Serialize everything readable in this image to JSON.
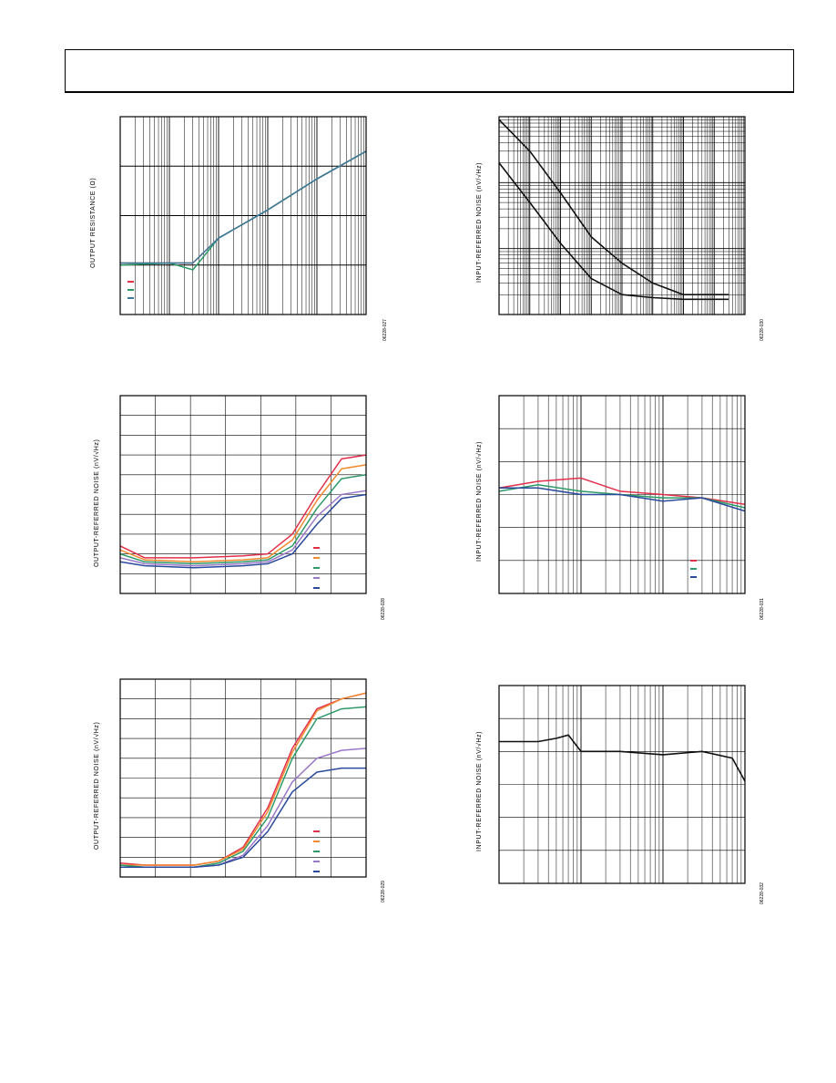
{
  "page": {
    "header": ""
  },
  "colors": {
    "red": "#e0304a",
    "orange": "#f08a30",
    "green": "#2e9a68",
    "purple": "#9a78c8",
    "blue": "#2a4a9a",
    "teal": "#3a7a9a",
    "black": "#111111"
  },
  "charts": [
    {
      "id": "fig27",
      "ylabel": "OUTPUT RESISTANCE (Ω)",
      "figid": "06228-027",
      "chart_data": {
        "type": "line",
        "title": "",
        "xlabel": "",
        "ylabel": "OUTPUT RESISTANCE (Ω)",
        "xscale": "log",
        "xlim": [
          100,
          10000000
        ],
        "xdecades": 5,
        "yscale": "log",
        "ylim": [
          0.01,
          100
        ],
        "ydecades": 4,
        "grid": true,
        "legend": "bottom-left",
        "series": [
          {
            "color": "red",
            "x": [
              100,
              1000,
              3000,
              10000,
              100000,
              1000000,
              10000000
            ],
            "y": [
              0.11,
              0.11,
              0.11,
              0.35,
              1.3,
              5.5,
              20
            ]
          },
          {
            "color": "green",
            "x": [
              100,
              1000,
              3000,
              10000,
              100000,
              1000000,
              10000000
            ],
            "y": [
              0.1,
              0.11,
              0.08,
              0.35,
              1.3,
              5.5,
              20
            ]
          },
          {
            "color": "teal",
            "x": [
              100,
              1000,
              3000,
              10000,
              100000,
              1000000,
              10000000
            ],
            "y": [
              0.11,
              0.11,
              0.11,
              0.35,
              1.3,
              5.5,
              20
            ]
          }
        ]
      }
    },
    {
      "id": "fig30",
      "ylabel": "INPUT-REFERRED NOISE (nV/√Hz)",
      "figid": "06228-030",
      "chart_data": {
        "type": "line",
        "title": "",
        "xlabel": "",
        "ylabel": "INPUT-REFERRED NOISE (nV/√Hz)",
        "xscale": "log",
        "xlim": [
          1,
          100000000
        ],
        "xdecades": 8,
        "yscale": "log",
        "ylim": [
          1,
          1000
        ],
        "ydecades": 3,
        "grid": true,
        "legend": "none",
        "series": [
          {
            "color": "black",
            "x": [
              1,
              10,
              100,
              1000,
              10000,
              100000,
              1000000,
              10000000,
              30000000
            ],
            "y": [
              900,
              300,
              70,
              15,
              6,
              3,
              2,
              2,
              2
            ]
          },
          {
            "color": "black",
            "x": [
              1,
              10,
              100,
              1000,
              10000,
              100000,
              1000000,
              10000000,
              30000000
            ],
            "y": [
              200,
              50,
              12,
              3.5,
              2,
              1.8,
              1.7,
              1.7,
              1.7
            ]
          }
        ]
      }
    },
    {
      "id": "fig28",
      "ylabel": "OUTPUT-REFERRED NOISE (nV/√Hz)",
      "figid": "06228-028",
      "chart_data": {
        "type": "line",
        "title": "",
        "xlabel": "",
        "ylabel": "OUTPUT-REFERRED NOISE (nV/√Hz)",
        "xscale": "linear",
        "xlim": [
          0,
          10
        ],
        "xgrid": 7,
        "yscale": "linear",
        "ylim": [
          0,
          10
        ],
        "ygrid": 10,
        "grid": true,
        "legend": "bottom-right",
        "series": [
          {
            "color": "red",
            "x": [
              0,
              1,
              3,
              5,
              6,
              7,
              8,
              9,
              10
            ],
            "y": [
              2.4,
              1.8,
              1.8,
              1.9,
              2.0,
              3.0,
              5.0,
              6.8,
              7.0
            ]
          },
          {
            "color": "orange",
            "x": [
              0,
              1,
              3,
              5,
              6,
              7,
              8,
              9,
              10
            ],
            "y": [
              2.2,
              1.7,
              1.6,
              1.7,
              1.8,
              2.7,
              4.7,
              6.3,
              6.5
            ]
          },
          {
            "color": "green",
            "x": [
              0,
              1,
              3,
              5,
              6,
              7,
              8,
              9,
              10
            ],
            "y": [
              2.0,
              1.6,
              1.5,
              1.6,
              1.7,
              2.4,
              4.3,
              5.8,
              6.0
            ]
          },
          {
            "color": "purple",
            "x": [
              0,
              1,
              3,
              5,
              6,
              7,
              8,
              9,
              10
            ],
            "y": [
              1.8,
              1.5,
              1.4,
              1.5,
              1.6,
              2.2,
              3.9,
              5.0,
              5.2
            ]
          },
          {
            "color": "blue",
            "x": [
              0,
              1,
              3,
              5,
              6,
              7,
              8,
              9,
              10
            ],
            "y": [
              1.6,
              1.4,
              1.3,
              1.4,
              1.5,
              2.0,
              3.5,
              4.8,
              5.0
            ]
          }
        ]
      }
    },
    {
      "id": "fig31",
      "ylabel": "INPUT-REFERRED NOISE (nV/√Hz)",
      "figid": "06228-031",
      "chart_data": {
        "type": "line",
        "title": "",
        "xlabel": "",
        "ylabel": "INPUT-REFERRED NOISE (nV/√Hz)",
        "xscale": "log",
        "xlim": [
          1,
          1000
        ],
        "xdecades": 3,
        "yscale": "linear",
        "ylim": [
          0,
          6
        ],
        "ygrid": 6,
        "grid": true,
        "legend": "bottom-right",
        "series": [
          {
            "color": "red",
            "x": [
              1,
              3,
              10,
              30,
              100,
              300,
              1000
            ],
            "y": [
              3.2,
              3.4,
              3.5,
              3.1,
              3.0,
              2.9,
              2.7
            ]
          },
          {
            "color": "green",
            "x": [
              1,
              3,
              10,
              30,
              100,
              300,
              1000
            ],
            "y": [
              3.1,
              3.3,
              3.1,
              3.0,
              2.9,
              2.9,
              2.6
            ]
          },
          {
            "color": "blue",
            "x": [
              1,
              3,
              10,
              30,
              100,
              300,
              1000
            ],
            "y": [
              3.2,
              3.2,
              3.0,
              3.0,
              2.8,
              2.9,
              2.5
            ]
          }
        ]
      }
    },
    {
      "id": "fig29",
      "ylabel": "OUTPUT-REFERRED NOISE (nV/√Hz)",
      "figid": "06228-029",
      "chart_data": {
        "type": "line",
        "title": "",
        "xlabel": "",
        "ylabel": "OUTPUT-REFERRED NOISE (nV/√Hz)",
        "xscale": "linear",
        "xlim": [
          0,
          10
        ],
        "xgrid": 7,
        "yscale": "linear",
        "ylim": [
          0,
          10
        ],
        "ygrid": 10,
        "grid": true,
        "legend": "bottom-right",
        "series": [
          {
            "color": "red",
            "x": [
              0,
              1,
              3,
              4,
              5,
              6,
              7,
              8,
              9,
              10
            ],
            "y": [
              0.7,
              0.6,
              0.6,
              0.8,
              1.5,
              3.5,
              6.5,
              8.5,
              9.0,
              9.3
            ]
          },
          {
            "color": "orange",
            "x": [
              0,
              1,
              3,
              4,
              5,
              6,
              7,
              8,
              9,
              10
            ],
            "y": [
              0.6,
              0.6,
              0.6,
              0.8,
              1.4,
              3.3,
              6.3,
              8.4,
              9.0,
              9.3
            ]
          },
          {
            "color": "green",
            "x": [
              0,
              1,
              3,
              4,
              5,
              6,
              7,
              8,
              9,
              10
            ],
            "y": [
              0.6,
              0.5,
              0.5,
              0.7,
              1.3,
              3.0,
              6.0,
              8.0,
              8.5,
              8.6
            ]
          },
          {
            "color": "purple",
            "x": [
              0,
              1,
              3,
              4,
              5,
              6,
              7,
              8,
              9,
              10
            ],
            "y": [
              0.5,
              0.5,
              0.5,
              0.6,
              1.1,
              2.6,
              4.8,
              6.0,
              6.4,
              6.5
            ]
          },
          {
            "color": "blue",
            "x": [
              0,
              1,
              3,
              4,
              5,
              6,
              7,
              8,
              9,
              10
            ],
            "y": [
              0.5,
              0.5,
              0.5,
              0.6,
              1.0,
              2.3,
              4.3,
              5.3,
              5.5,
              5.5
            ]
          }
        ]
      }
    },
    {
      "id": "fig32",
      "ylabel": "INPUT-REFERRED NOISE (nV/√Hz)",
      "figid": "06228-032",
      "chart_data": {
        "type": "line",
        "title": "",
        "xlabel": "",
        "ylabel": "INPUT-REFERRED NOISE (nV/√Hz)",
        "xscale": "log",
        "xlim": [
          1,
          1000
        ],
        "xdecades": 3,
        "yscale": "linear",
        "ylim": [
          0,
          6
        ],
        "ygrid": 6,
        "grid": true,
        "legend": "none",
        "series": [
          {
            "color": "black",
            "x": [
              1,
              3,
              5,
              7,
              10,
              30,
              100,
              300,
              700,
              1000
            ],
            "y": [
              4.3,
              4.3,
              4.4,
              4.5,
              4.0,
              4.0,
              3.9,
              4.0,
              3.8,
              3.1
            ]
          }
        ]
      }
    }
  ]
}
